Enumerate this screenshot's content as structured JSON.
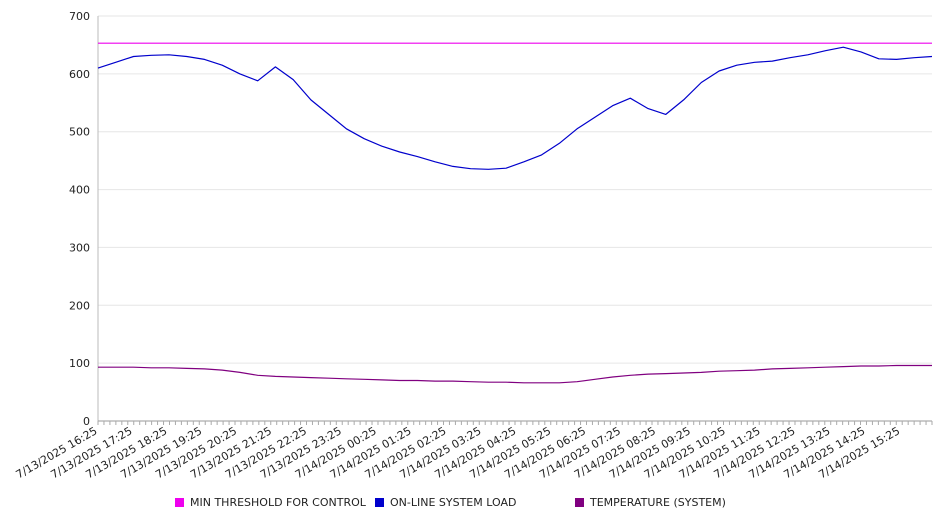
{
  "chart_data": {
    "type": "line",
    "title": "",
    "xlabel": "",
    "ylabel": "",
    "ylim": [
      0,
      700
    ],
    "yticks": [
      0,
      100,
      200,
      300,
      400,
      500,
      600,
      700
    ],
    "grid": true,
    "legend_position": "bottom",
    "x_tick_labels": [
      "7/13/2025 16:25",
      "7/13/2025 17:25",
      "7/13/2025 18:25",
      "7/13/2025 19:25",
      "7/13/2025 20:25",
      "7/13/2025 21:25",
      "7/13/2025 22:25",
      "7/13/2025 23:25",
      "7/14/2025 00:25",
      "7/14/2025 01:25",
      "7/14/2025 02:25",
      "7/14/2025 03:25",
      "7/14/2025 04:25",
      "7/14/2025 05:25",
      "7/14/2025 06:25",
      "7/14/2025 07:25",
      "7/14/2025 08:25",
      "7/14/2025 09:25",
      "7/14/2025 10:25",
      "7/14/2025 11:25",
      "7/14/2025 12:25",
      "7/14/2025 13:25",
      "7/14/2025 14:25",
      "7/14/2025 15:25"
    ],
    "x": [
      "7/13/2025 16:25",
      "7/13/2025 16:55",
      "7/13/2025 17:25",
      "7/13/2025 17:55",
      "7/13/2025 18:25",
      "7/13/2025 18:55",
      "7/13/2025 19:25",
      "7/13/2025 19:55",
      "7/13/2025 20:25",
      "7/13/2025 20:55",
      "7/13/2025 21:25",
      "7/13/2025 21:55",
      "7/13/2025 22:25",
      "7/13/2025 22:55",
      "7/13/2025 23:25",
      "7/13/2025 23:55",
      "7/14/2025 00:25",
      "7/14/2025 00:55",
      "7/14/2025 01:25",
      "7/14/2025 01:55",
      "7/14/2025 02:25",
      "7/14/2025 02:55",
      "7/14/2025 03:25",
      "7/14/2025 03:55",
      "7/14/2025 04:25",
      "7/14/2025 04:55",
      "7/14/2025 05:25",
      "7/14/2025 05:55",
      "7/14/2025 06:25",
      "7/14/2025 06:55",
      "7/14/2025 07:25",
      "7/14/2025 07:55",
      "7/14/2025 08:25",
      "7/14/2025 08:55",
      "7/14/2025 09:25",
      "7/14/2025 09:55",
      "7/14/2025 10:25",
      "7/14/2025 10:55",
      "7/14/2025 11:25",
      "7/14/2025 11:55",
      "7/14/2025 12:25",
      "7/14/2025 12:55",
      "7/14/2025 13:25",
      "7/14/2025 13:55",
      "7/14/2025 14:25",
      "7/14/2025 14:55",
      "7/14/2025 15:25",
      "7/14/2025 15:55"
    ],
    "series": [
      {
        "name": "MIN THRESHOLD FOR CONTROL",
        "color": "#ee00ee",
        "values": [
          653,
          653,
          653,
          653,
          653,
          653,
          653,
          653,
          653,
          653,
          653,
          653,
          653,
          653,
          653,
          653,
          653,
          653,
          653,
          653,
          653,
          653,
          653,
          653,
          653,
          653,
          653,
          653,
          653,
          653,
          653,
          653,
          653,
          653,
          653,
          653,
          653,
          653,
          653,
          653,
          653,
          653,
          653,
          653,
          653,
          653,
          653,
          653
        ]
      },
      {
        "name": "ON-LINE SYSTEM LOAD",
        "color": "#0000cc",
        "values": [
          610,
          620,
          630,
          632,
          633,
          630,
          625,
          615,
          600,
          588,
          612,
          590,
          555,
          530,
          505,
          488,
          475,
          465,
          457,
          448,
          440,
          436,
          435,
          437,
          448,
          460,
          480,
          505,
          525,
          545,
          558,
          540,
          530,
          555,
          585,
          605,
          615,
          620,
          622,
          628,
          633,
          640,
          646,
          638,
          626,
          625,
          628,
          630
        ]
      },
      {
        "name": "TEMPERATURE (SYSTEM)",
        "color": "#800080",
        "values": [
          93,
          93,
          93,
          92,
          92,
          91,
          90,
          88,
          84,
          79,
          77,
          76,
          75,
          74,
          73,
          72,
          71,
          70,
          70,
          69,
          69,
          68,
          67,
          67,
          66,
          66,
          66,
          68,
          72,
          76,
          79,
          81,
          82,
          83,
          84,
          86,
          87,
          88,
          90,
          91,
          92,
          93,
          94,
          95,
          95,
          96,
          96,
          96
        ]
      }
    ]
  }
}
